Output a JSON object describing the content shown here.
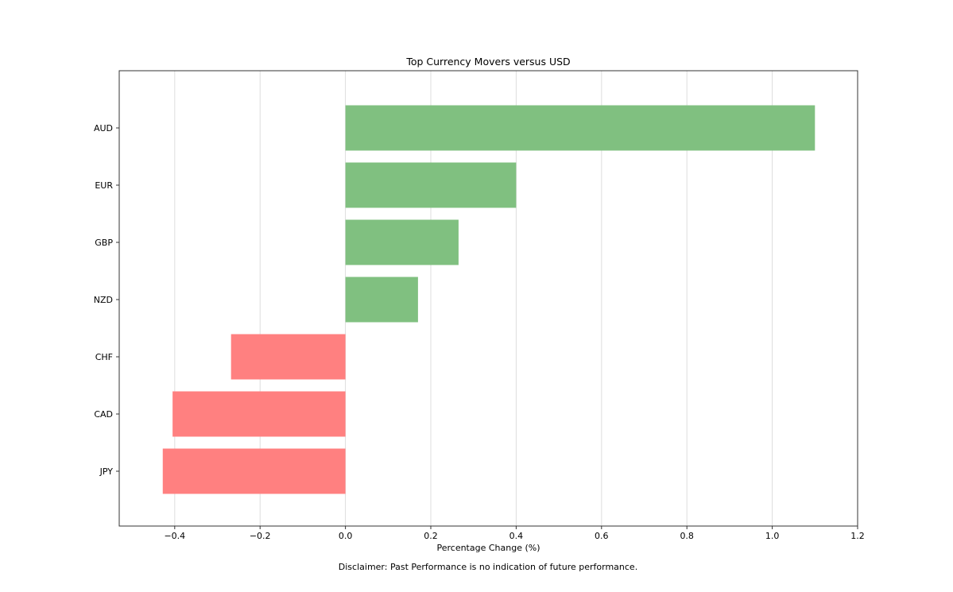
{
  "chart_data": {
    "type": "bar",
    "orientation": "horizontal",
    "title": "Top Currency Movers versus USD",
    "xlabel": "Percentage Change (%)",
    "ylabel": "",
    "footnote": "Disclaimer: Past Performance is no indication of future performance.",
    "categories": [
      "AUD",
      "EUR",
      "GBP",
      "NZD",
      "CHF",
      "CAD",
      "JPY"
    ],
    "values": [
      1.1,
      0.4,
      0.265,
      0.17,
      -0.268,
      -0.405,
      -0.428
    ],
    "xlim": [
      -0.53,
      1.2
    ],
    "xticks": [
      -0.4,
      -0.2,
      0.0,
      0.2,
      0.4,
      0.6,
      0.8,
      1.0,
      1.2
    ],
    "xtick_labels": [
      "−0.4",
      "−0.2",
      "0.0",
      "0.2",
      "0.4",
      "0.6",
      "0.8",
      "1.0",
      "1.2"
    ],
    "grid": "x",
    "colors": {
      "positive": "#80c080",
      "negative": "#ff8080",
      "grid": "#dddddd",
      "axes": "#333333"
    }
  }
}
